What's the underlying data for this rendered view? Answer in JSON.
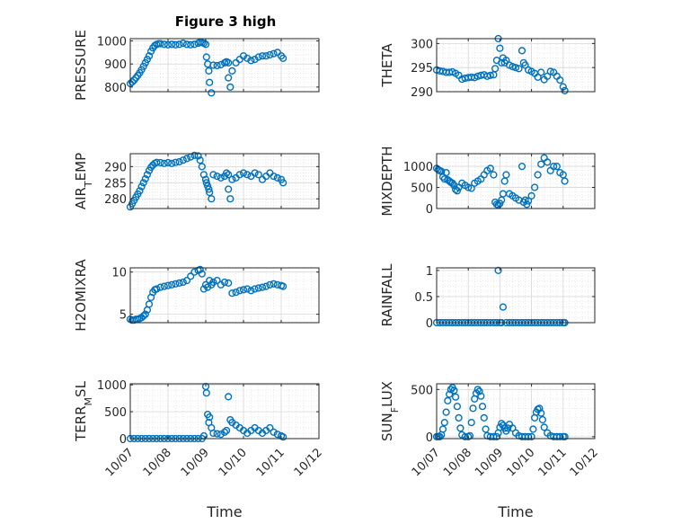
{
  "chart_data": {
    "type": "scatter",
    "title": "Figure 3 high",
    "marker_color": "#0072BD",
    "grid": true,
    "minor_grid": true,
    "x_ticks": [
      "10/07",
      "10/08",
      "10/09",
      "10/10",
      "10/11",
      "10/12"
    ],
    "xlim": [
      0,
      5
    ],
    "xlabel": "Time",
    "panels": [
      {
        "ylabel": "PRESSURE",
        "ylim": [
          780,
          1010
        ],
        "yticks": [
          800,
          900,
          1000
        ],
        "x": [
          0,
          0.05,
          0.1,
          0.15,
          0.2,
          0.25,
          0.3,
          0.35,
          0.4,
          0.45,
          0.5,
          0.55,
          0.6,
          0.65,
          0.7,
          0.75,
          0.8,
          0.9,
          1.0,
          1.1,
          1.2,
          1.3,
          1.4,
          1.5,
          1.6,
          1.7,
          1.8,
          1.85,
          1.9,
          1.95,
          2.0,
          2.02,
          2.05,
          2.08,
          2.1,
          2.15,
          2.2,
          2.3,
          2.4,
          2.5,
          2.55,
          2.6,
          2.6,
          2.65,
          2.7,
          2.8,
          2.9,
          3.0,
          3.1,
          3.2,
          3.3,
          3.4,
          3.5,
          3.6,
          3.7,
          3.8,
          3.9,
          4.0,
          4.05
        ],
        "values": [
          815,
          822,
          830,
          840,
          850,
          862,
          875,
          890,
          905,
          920,
          935,
          955,
          970,
          980,
          985,
          988,
          988,
          985,
          983,
          985,
          983,
          985,
          990,
          985,
          983,
          985,
          990,
          995,
          993,
          990,
          985,
          930,
          900,
          870,
          820,
          775,
          895,
          893,
          897,
          905,
          910,
          905,
          840,
          800,
          870,
          905,
          920,
          935,
          925,
          915,
          920,
          930,
          935,
          935,
          940,
          945,
          950,
          935,
          925
        ]
      },
      {
        "ylabel": "THETA",
        "ylim": [
          290,
          301
        ],
        "yticks": [
          290,
          295,
          300
        ],
        "x": [
          0,
          0.1,
          0.2,
          0.3,
          0.4,
          0.5,
          0.6,
          0.7,
          0.8,
          0.9,
          1.0,
          1.1,
          1.2,
          1.3,
          1.4,
          1.5,
          1.6,
          1.7,
          1.8,
          1.85,
          1.9,
          1.95,
          2.0,
          2.05,
          2.1,
          2.15,
          2.2,
          2.3,
          2.4,
          2.5,
          2.6,
          2.7,
          2.75,
          2.8,
          2.9,
          3.0,
          3.1,
          3.2,
          3.3,
          3.4,
          3.5,
          3.6,
          3.7,
          3.8,
          3.9,
          4.0,
          4.05
        ],
        "values": [
          294.5,
          294.3,
          294.2,
          294.0,
          294.0,
          294.1,
          293.8,
          293.4,
          292.6,
          292.8,
          292.9,
          293.0,
          292.9,
          293.2,
          293.4,
          293.5,
          293.2,
          293.4,
          293.5,
          294.8,
          296.5,
          301.0,
          299.0,
          296.0,
          297.0,
          296.0,
          296.5,
          295.5,
          295.2,
          295.0,
          294.8,
          298.5,
          296.0,
          295.5,
          294.5,
          294.2,
          293.8,
          293.0,
          294.0,
          292.5,
          293.2,
          294.2,
          294.0,
          293.2,
          292.4,
          291.0,
          290.2
        ]
      },
      {
        "ylabel": "AIR_TEMP",
        "ylim": [
          277,
          294
        ],
        "yticks": [
          280,
          285,
          290
        ],
        "x": [
          0,
          0.05,
          0.1,
          0.15,
          0.2,
          0.25,
          0.3,
          0.35,
          0.4,
          0.45,
          0.5,
          0.55,
          0.6,
          0.65,
          0.7,
          0.8,
          0.9,
          1.0,
          1.1,
          1.2,
          1.3,
          1.4,
          1.5,
          1.6,
          1.7,
          1.8,
          1.85,
          1.9,
          1.95,
          2.0,
          2.02,
          2.05,
          2.08,
          2.1,
          2.15,
          2.2,
          2.3,
          2.4,
          2.5,
          2.55,
          2.6,
          2.6,
          2.65,
          2.7,
          2.8,
          2.9,
          3.0,
          3.1,
          3.2,
          3.3,
          3.4,
          3.5,
          3.6,
          3.7,
          3.8,
          3.9,
          4.0,
          4.05
        ],
        "values": [
          277.5,
          278.5,
          279.5,
          280.5,
          281.5,
          282.5,
          283.8,
          285.0,
          286.2,
          287.5,
          288.8,
          289.8,
          290.5,
          291.0,
          291.3,
          291.2,
          291.0,
          291.2,
          291.0,
          291.3,
          291.5,
          292.0,
          292.5,
          293.0,
          293.5,
          293.3,
          292.0,
          290.0,
          287.5,
          286.0,
          285.0,
          284.0,
          283.0,
          282.0,
          280.0,
          287.5,
          287.0,
          286.5,
          287.0,
          288.0,
          287.5,
          283.0,
          280.0,
          286.0,
          286.5,
          287.5,
          288.0,
          287.5,
          287.0,
          288.0,
          287.5,
          286.0,
          287.0,
          288.0,
          287.0,
          286.5,
          286.0,
          285.0
        ]
      },
      {
        "ylabel": "MIXDEPTH",
        "ylim": [
          0,
          1300
        ],
        "yticks": [
          0,
          500,
          1000
        ],
        "x": [
          0,
          0.05,
          0.1,
          0.15,
          0.2,
          0.25,
          0.3,
          0.35,
          0.4,
          0.45,
          0.5,
          0.55,
          0.6,
          0.65,
          0.7,
          0.8,
          0.9,
          1.0,
          1.1,
          1.2,
          1.3,
          1.4,
          1.5,
          1.6,
          1.7,
          1.8,
          1.85,
          1.9,
          1.95,
          2.0,
          2.05,
          2.1,
          2.15,
          2.2,
          2.3,
          2.4,
          2.5,
          2.6,
          2.7,
          2.75,
          2.8,
          2.85,
          2.9,
          3.0,
          3.1,
          3.2,
          3.3,
          3.4,
          3.5,
          3.6,
          3.7,
          3.8,
          3.9,
          4.0,
          4.05
        ],
        "values": [
          950,
          920,
          900,
          880,
          750,
          700,
          850,
          680,
          650,
          620,
          600,
          550,
          450,
          420,
          500,
          600,
          550,
          500,
          480,
          600,
          650,
          700,
          800,
          900,
          950,
          800,
          150,
          100,
          80,
          120,
          200,
          350,
          650,
          800,
          350,
          300,
          250,
          200,
          1000,
          150,
          200,
          100,
          180,
          300,
          500,
          800,
          1050,
          1200,
          1100,
          900,
          1000,
          1000,
          850,
          800,
          650
        ]
      },
      {
        "ylabel": "H2OMIXRA",
        "ylim": [
          4,
          10.5
        ],
        "yticks": [
          5,
          10
        ],
        "x": [
          0,
          0.05,
          0.1,
          0.15,
          0.2,
          0.25,
          0.3,
          0.35,
          0.4,
          0.45,
          0.5,
          0.55,
          0.6,
          0.65,
          0.7,
          0.8,
          0.9,
          1.0,
          1.1,
          1.2,
          1.3,
          1.4,
          1.5,
          1.6,
          1.7,
          1.8,
          1.85,
          1.9,
          1.95,
          2.0,
          2.05,
          2.1,
          2.15,
          2.2,
          2.3,
          2.4,
          2.5,
          2.6,
          2.7,
          2.8,
          2.9,
          3.0,
          3.1,
          3.2,
          3.3,
          3.4,
          3.5,
          3.6,
          3.7,
          3.8,
          3.9,
          4.0,
          4.05
        ],
        "values": [
          4.4,
          4.3,
          4.3,
          4.4,
          4.4,
          4.5,
          4.6,
          4.8,
          5.0,
          5.5,
          6.2,
          7.0,
          7.6,
          7.9,
          8.0,
          8.2,
          8.3,
          8.4,
          8.5,
          8.6,
          8.7,
          8.8,
          9.0,
          9.5,
          10.0,
          10.2,
          10.3,
          9.8,
          8.0,
          8.5,
          8.2,
          9.0,
          8.5,
          8.8,
          9.0,
          8.5,
          8.8,
          8.7,
          7.5,
          7.6,
          7.8,
          7.9,
          8.0,
          7.8,
          8.0,
          8.1,
          8.2,
          8.3,
          8.5,
          8.6,
          8.5,
          8.4,
          8.3
        ]
      },
      {
        "ylabel": "RAINFALL",
        "ylim": [
          0,
          1.05
        ],
        "yticks": [
          0,
          0.5,
          1
        ],
        "x": [
          0,
          0.1,
          0.2,
          0.3,
          0.4,
          0.5,
          0.6,
          0.7,
          0.8,
          0.9,
          1.0,
          1.1,
          1.2,
          1.3,
          1.4,
          1.5,
          1.6,
          1.7,
          1.8,
          1.9,
          1.95,
          2.0,
          2.05,
          2.1,
          2.2,
          2.3,
          2.4,
          2.5,
          2.6,
          2.7,
          2.8,
          2.9,
          3.0,
          3.1,
          3.2,
          3.3,
          3.4,
          3.5,
          3.6,
          3.7,
          3.8,
          3.9,
          4.0,
          4.05
        ],
        "values": [
          0,
          0,
          0,
          0,
          0,
          0,
          0,
          0,
          0,
          0,
          0,
          0,
          0,
          0,
          0,
          0,
          0,
          0,
          0,
          0,
          1.0,
          0,
          0,
          0.3,
          0,
          0,
          0,
          0,
          0,
          0,
          0,
          0,
          0,
          0,
          0,
          0,
          0,
          0,
          0,
          0,
          0,
          0,
          0,
          0
        ]
      },
      {
        "ylabel": "TERR_MSL",
        "ylim": [
          0,
          1020
        ],
        "yticks": [
          0,
          500,
          1000
        ],
        "x": [
          0,
          0.1,
          0.2,
          0.3,
          0.4,
          0.5,
          0.6,
          0.7,
          0.8,
          0.9,
          1.0,
          1.1,
          1.2,
          1.3,
          1.4,
          1.5,
          1.6,
          1.7,
          1.8,
          1.9,
          1.95,
          2.0,
          2.02,
          2.05,
          2.08,
          2.1,
          2.15,
          2.2,
          2.3,
          2.4,
          2.5,
          2.55,
          2.6,
          2.65,
          2.7,
          2.8,
          2.9,
          3.0,
          3.1,
          3.2,
          3.3,
          3.4,
          3.5,
          3.6,
          3.7,
          3.8,
          3.9,
          4.0,
          4.05
        ],
        "values": [
          0,
          0,
          0,
          0,
          0,
          0,
          0,
          0,
          0,
          0,
          0,
          0,
          0,
          0,
          0,
          0,
          0,
          0,
          0,
          0,
          50,
          970,
          850,
          450,
          300,
          400,
          200,
          100,
          90,
          80,
          120,
          150,
          780,
          350,
          300,
          250,
          200,
          150,
          100,
          150,
          200,
          150,
          100,
          150,
          200,
          120,
          80,
          50,
          30
        ]
      },
      {
        "ylabel": "SUN_FLUX",
        "ylim": [
          -20,
          560
        ],
        "yticks": [
          0,
          500
        ],
        "x": [
          0,
          0.05,
          0.1,
          0.15,
          0.2,
          0.25,
          0.3,
          0.35,
          0.4,
          0.45,
          0.5,
          0.55,
          0.6,
          0.65,
          0.7,
          0.75,
          0.8,
          0.9,
          1.0,
          1.05,
          1.1,
          1.15,
          1.2,
          1.25,
          1.3,
          1.35,
          1.4,
          1.45,
          1.5,
          1.55,
          1.6,
          1.7,
          1.8,
          1.9,
          1.95,
          2.0,
          2.05,
          2.1,
          2.15,
          2.2,
          2.25,
          2.3,
          2.4,
          2.5,
          2.6,
          2.7,
          2.8,
          2.9,
          3.0,
          3.05,
          3.1,
          3.15,
          3.2,
          3.25,
          3.3,
          3.35,
          3.4,
          3.5,
          3.6,
          3.7,
          3.8,
          3.9,
          4.0,
          4.05
        ],
        "values": [
          0,
          0,
          0,
          20,
          80,
          150,
          260,
          380,
          450,
          500,
          520,
          490,
          420,
          320,
          200,
          90,
          20,
          0,
          0,
          10,
          150,
          300,
          400,
          460,
          500,
          480,
          430,
          320,
          200,
          80,
          10,
          0,
          0,
          0,
          40,
          100,
          140,
          120,
          90,
          60,
          90,
          130,
          90,
          40,
          10,
          0,
          0,
          0,
          0,
          80,
          200,
          260,
          290,
          300,
          250,
          180,
          100,
          40,
          10,
          0,
          0,
          0,
          0,
          0
        ]
      }
    ]
  }
}
